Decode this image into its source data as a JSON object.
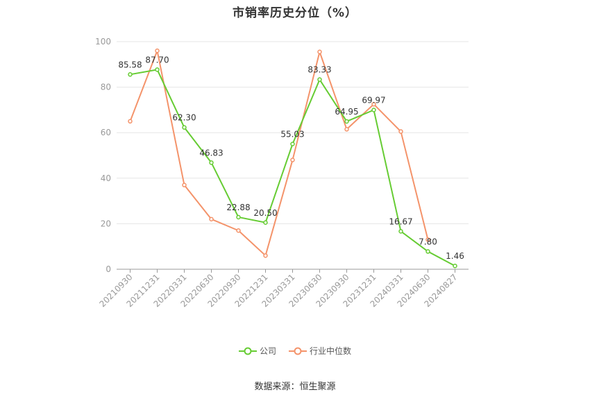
{
  "chart_data": {
    "type": "line",
    "title": "市销率历史分位（%）",
    "xlabel": "",
    "ylabel": "",
    "ylim": [
      0,
      100
    ],
    "yticks": [
      0,
      20,
      40,
      60,
      80,
      100
    ],
    "grid": true,
    "legend_position": "bottom-center",
    "categories": [
      "20210930",
      "20211231",
      "20220331",
      "20220630",
      "20220930",
      "20221231",
      "20230331",
      "20230630",
      "20230930",
      "20231231",
      "20240331",
      "20240630",
      "20240827"
    ],
    "series": [
      {
        "name": "公司",
        "color": "#66cc33",
        "show_labels": true,
        "values": [
          85.58,
          87.7,
          62.3,
          46.83,
          22.88,
          20.5,
          55.03,
          83.33,
          64.95,
          69.97,
          16.67,
          7.8,
          1.46
        ],
        "labels": [
          "85.58",
          "87.70",
          "62.30",
          "46.83",
          "22.88",
          "20.50",
          "55.03",
          "83.33",
          "64.95",
          "69.97",
          "16.67",
          "7.80",
          "1.46"
        ]
      },
      {
        "name": "行业中位数",
        "color": "#f4936a",
        "show_labels": false,
        "values": [
          65,
          96,
          37,
          22,
          17,
          6,
          48,
          95.5,
          61.5,
          72.5,
          60.5,
          13,
          null
        ]
      }
    ]
  },
  "source_text": "数据来源：恒生聚源"
}
